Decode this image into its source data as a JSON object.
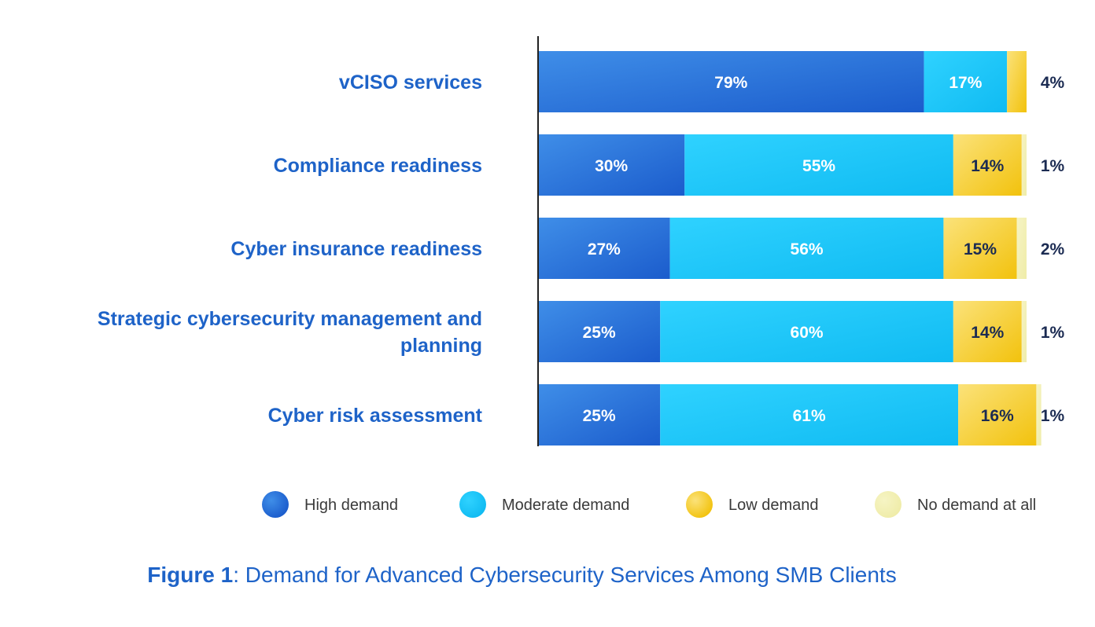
{
  "chart_data": {
    "type": "bar",
    "orientation": "horizontal",
    "stacked": true,
    "categories": [
      [
        "vCISO services"
      ],
      [
        "Compliance readiness"
      ],
      [
        "Cyber insurance readiness"
      ],
      [
        "Strategic cybersecurity management and",
        "planning"
      ],
      [
        "Cyber risk assessment"
      ]
    ],
    "series": [
      {
        "name": "High demand",
        "values": [
          79,
          30,
          27,
          25,
          25
        ],
        "labels": [
          "79%",
          "30%",
          "27%",
          "25%",
          "25%"
        ]
      },
      {
        "name": "Moderate demand",
        "values": [
          17,
          55,
          56,
          60,
          61
        ],
        "labels": [
          "17%",
          "55%",
          "56%",
          "60%",
          "61%"
        ]
      },
      {
        "name": "Low demand",
        "values": [
          4,
          14,
          15,
          14,
          16
        ],
        "labels": [
          "4%",
          "14%",
          "15%",
          "14%",
          "16%"
        ]
      },
      {
        "name": "No demand at all",
        "values": [
          0,
          1,
          2,
          1,
          1
        ],
        "labels": [
          "",
          "1%",
          "2%",
          "1%",
          "1%"
        ]
      }
    ],
    "outside_labels": [
      "4%",
      "1%",
      "2%",
      "1%",
      "1%"
    ],
    "xlim": [
      0,
      100
    ],
    "grid": false,
    "legend": "bottom",
    "colors": {
      "High demand": [
        "#3f8ee8",
        "#1b5ccc"
      ],
      "Moderate demand": [
        "#2fd2ff",
        "#10bbf2"
      ],
      "Low demand": [
        "#fbe27a",
        "#f2c20d"
      ],
      "No demand at all": [
        "#f6f4c4",
        "#efeca8"
      ]
    },
    "segment_label_colors": [
      "#ffffff",
      "#ffffff",
      "#1b2b52",
      "#1b2b52"
    ]
  },
  "caption": {
    "bold": "Figure 1",
    "rest": ": Demand for Advanced Cybersecurity Services Among SMB Clients"
  }
}
